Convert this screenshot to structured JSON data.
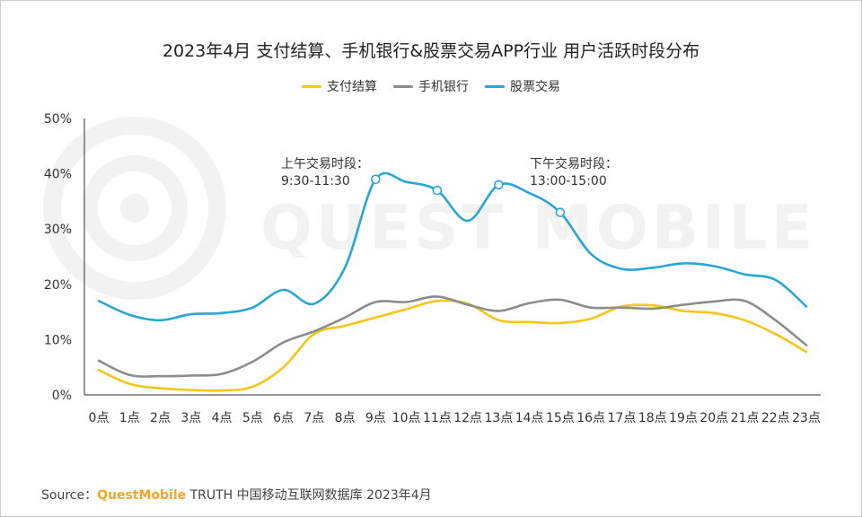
{
  "title": "2023年4月 支付结算、手机银行&股票交易APP行业 用户活跃时段分布",
  "watermark": "QUEST MOBILE",
  "source": {
    "label": "Source：",
    "brand": "QuestMobile",
    "text": " TRUTH 中国移动互联网数据库 2023年4月"
  },
  "annotations": {
    "am": {
      "line1": "上午交易时段：",
      "line2": "9:30-11:30"
    },
    "pm": {
      "line1": "下午交易时段：",
      "line2": "13:00-15:00"
    }
  },
  "chart_data": {
    "type": "line",
    "categories": [
      "0点",
      "1点",
      "2点",
      "3点",
      "4点",
      "5点",
      "6点",
      "7点",
      "8点",
      "9点",
      "10点",
      "11点",
      "12点",
      "13点",
      "14点",
      "15点",
      "16点",
      "17点",
      "18点",
      "19点",
      "20点",
      "21点",
      "22点",
      "23点"
    ],
    "yticks": [
      "0%",
      "10%",
      "20%",
      "30%",
      "40%",
      "50%"
    ],
    "ylim": [
      0,
      50
    ],
    "legend_position": "top-center",
    "grid": false,
    "series": [
      {
        "name": "支付结算",
        "color": "#F5C518",
        "values": [
          4.5,
          2.0,
          1.2,
          0.9,
          0.8,
          1.5,
          5.0,
          11.0,
          12.5,
          14.0,
          15.5,
          17.0,
          16.5,
          13.5,
          13.2,
          13.0,
          13.8,
          16.0,
          16.2,
          15.2,
          14.8,
          13.5,
          11.0,
          7.8
        ]
      },
      {
        "name": "手机银行",
        "color": "#8C8C8C",
        "values": [
          6.2,
          3.6,
          3.4,
          3.5,
          3.8,
          6.0,
          9.5,
          11.5,
          14.0,
          16.8,
          16.8,
          17.8,
          16.3,
          15.2,
          16.6,
          17.2,
          15.8,
          15.8,
          15.6,
          16.3,
          16.9,
          17.0,
          13.5,
          9.0
        ]
      },
      {
        "name": "股票交易",
        "color": "#2AA5D8",
        "values": [
          17.0,
          14.5,
          13.5,
          14.6,
          14.8,
          15.8,
          19.0,
          16.5,
          23.0,
          39.0,
          38.5,
          37.0,
          31.5,
          38.0,
          36.5,
          33.0,
          25.5,
          22.8,
          23.0,
          23.8,
          23.3,
          21.8,
          20.8,
          16.0
        ]
      }
    ],
    "markers": [
      {
        "series": "股票交易",
        "category": "9点",
        "value": 39.0
      },
      {
        "series": "股票交易",
        "category": "11点",
        "value": 37.0
      },
      {
        "series": "股票交易",
        "category": "13点",
        "value": 38.0
      },
      {
        "series": "股票交易",
        "category": "15点",
        "value": 33.0
      }
    ]
  }
}
